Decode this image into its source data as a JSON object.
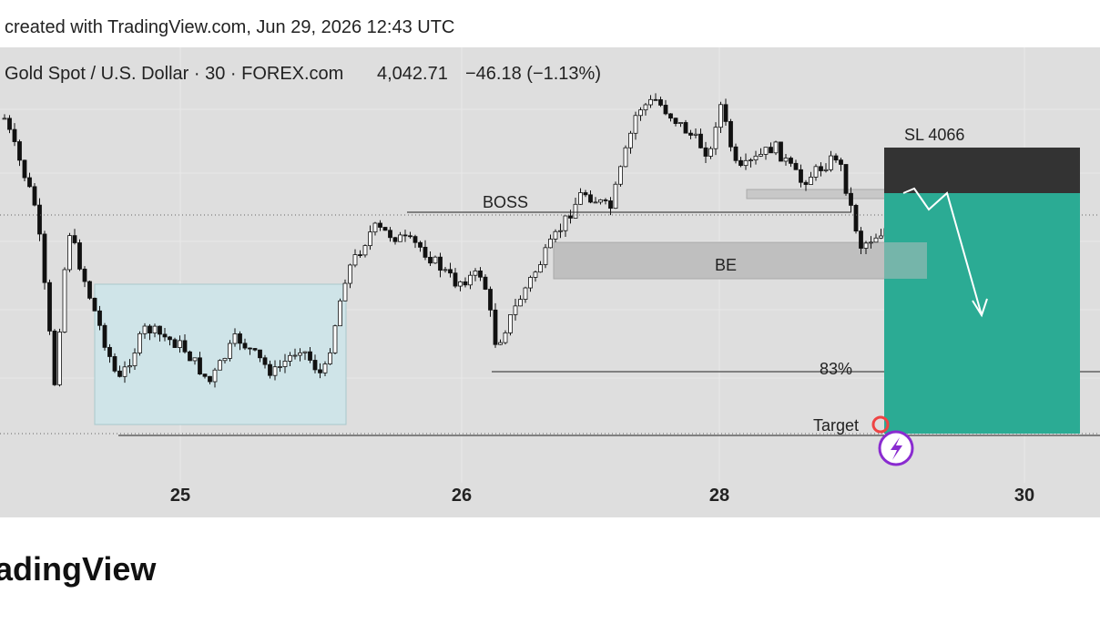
{
  "header": {
    "text": "created with TradingView.com, Jun 29, 2026 12:43 UTC"
  },
  "symbol": {
    "name": "Gold Spot / U.S. Dollar · 30 · FOREX.com",
    "price": "4,042.71",
    "change": "−46.18 (−1.13%)"
  },
  "annotations": {
    "sl": "SL 4066",
    "boss": "BOSS",
    "be": "BE",
    "pct": "83%",
    "target": "Target"
  },
  "x_axis": {
    "labels": [
      "25",
      "26",
      "28",
      "30"
    ]
  },
  "footer": {
    "brand": "TradingView"
  }
}
